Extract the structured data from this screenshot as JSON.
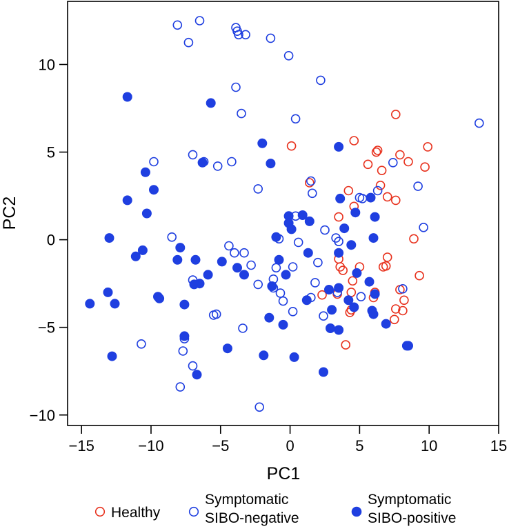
{
  "chart_data": {
    "type": "scatter",
    "title": "",
    "xlabel": "PC1",
    "ylabel": "PC2",
    "xlim": [
      -16,
      15
    ],
    "ylim": [
      -10.6,
      13.6
    ],
    "xticks": [
      -15,
      -10,
      -5,
      0,
      5,
      10,
      15
    ],
    "yticks": [
      -10,
      -5,
      0,
      5,
      10
    ],
    "grid": false,
    "legend_position": "bottom",
    "series": [
      {
        "name": "Healthy",
        "marker": "open-circle",
        "color": "#e8321e",
        "points": [
          [
            0.1,
            5.35
          ],
          [
            4.6,
            5.65
          ],
          [
            6.2,
            5.0
          ],
          [
            6.3,
            5.1
          ],
          [
            7.6,
            7.15
          ],
          [
            7.9,
            4.85
          ],
          [
            9.9,
            5.3
          ],
          [
            5.6,
            4.3
          ],
          [
            6.6,
            3.95
          ],
          [
            8.5,
            4.45
          ],
          [
            9.7,
            4.15
          ],
          [
            1.4,
            3.25
          ],
          [
            4.2,
            2.8
          ],
          [
            6.5,
            3.1
          ],
          [
            7.0,
            2.45
          ],
          [
            7.6,
            2.25
          ],
          [
            3.5,
            1.3
          ],
          [
            4.6,
            1.9
          ],
          [
            8.9,
            0.05
          ],
          [
            3.5,
            -1.1
          ],
          [
            3.6,
            -1.55
          ],
          [
            3.8,
            -1.75
          ],
          [
            5.0,
            -1.55
          ],
          [
            7.0,
            -1.0
          ],
          [
            6.9,
            -1.5
          ],
          [
            6.7,
            -1.55
          ],
          [
            4.5,
            -2.35
          ],
          [
            9.3,
            -2.05
          ],
          [
            2.3,
            -3.15
          ],
          [
            3.4,
            -3.1
          ],
          [
            4.4,
            -3.0
          ],
          [
            6.1,
            -3.0
          ],
          [
            6.0,
            -3.3
          ],
          [
            7.9,
            -2.85
          ],
          [
            8.2,
            -3.45
          ],
          [
            7.6,
            -3.95
          ],
          [
            8.1,
            -4.05
          ],
          [
            4.4,
            -4.0
          ],
          [
            4.3,
            -4.15
          ],
          [
            7.5,
            -4.55
          ],
          [
            4.0,
            -6.0
          ]
        ]
      },
      {
        "name": "Symptomatic SIBO-negative",
        "marker": "open-circle",
        "color": "#1f3fe0",
        "points": [
          [
            -8.1,
            12.25
          ],
          [
            -6.5,
            12.5
          ],
          [
            -3.9,
            12.1
          ],
          [
            -3.8,
            11.9
          ],
          [
            -3.7,
            11.7
          ],
          [
            -3.2,
            11.7
          ],
          [
            -1.4,
            11.5
          ],
          [
            -7.3,
            11.25
          ],
          [
            -0.1,
            10.5
          ],
          [
            2.2,
            9.1
          ],
          [
            -3.9,
            8.7
          ],
          [
            -3.5,
            7.2
          ],
          [
            0.4,
            6.9
          ],
          [
            13.6,
            6.65
          ],
          [
            -9.8,
            4.45
          ],
          [
            -7.0,
            4.85
          ],
          [
            -6.2,
            4.45
          ],
          [
            -4.2,
            4.45
          ],
          [
            -5.2,
            4.2
          ],
          [
            -2.3,
            2.9
          ],
          [
            1.5,
            3.35
          ],
          [
            1.6,
            2.65
          ],
          [
            7.4,
            4.4
          ],
          [
            6.3,
            2.8
          ],
          [
            9.2,
            3.05
          ],
          [
            0.4,
            1.35
          ],
          [
            5.0,
            2.4
          ],
          [
            5.2,
            2.35
          ],
          [
            9.6,
            0.7
          ],
          [
            -8.5,
            0.15
          ],
          [
            -4.4,
            -0.35
          ],
          [
            -4.0,
            -0.75
          ],
          [
            -3.3,
            -0.75
          ],
          [
            -0.8,
            0.05
          ],
          [
            0.6,
            -0.15
          ],
          [
            2.5,
            0.55
          ],
          [
            3.3,
            0.1
          ],
          [
            3.5,
            -0.1
          ],
          [
            -1.2,
            -2.25
          ],
          [
            -2.8,
            -1.45
          ],
          [
            -2.3,
            -2.55
          ],
          [
            -1.2,
            -2.75
          ],
          [
            -1.0,
            -1.6
          ],
          [
            0.2,
            -1.55
          ],
          [
            1.8,
            -2.45
          ],
          [
            2.0,
            -1.3
          ],
          [
            -7.0,
            -2.3
          ],
          [
            -0.7,
            -3.05
          ],
          [
            -0.5,
            -3.5
          ],
          [
            1.5,
            -3.3
          ],
          [
            3.4,
            -3.0
          ],
          [
            5.1,
            -3.25
          ],
          [
            8.1,
            -2.8
          ],
          [
            -5.3,
            -4.25
          ],
          [
            -5.5,
            -4.3
          ],
          [
            0.2,
            -4.1
          ],
          [
            -3.4,
            -5.05
          ],
          [
            2.4,
            -4.35
          ],
          [
            -10.7,
            -5.95
          ],
          [
            -7.6,
            -5.65
          ],
          [
            -7.7,
            -6.35
          ],
          [
            -7.0,
            -7.2
          ],
          [
            -7.9,
            -8.4
          ],
          [
            -2.2,
            -9.55
          ]
        ]
      },
      {
        "name": "Symptomatic SIBO-positive",
        "marker": "filled-circle",
        "color": "#1f3fe0",
        "points": [
          [
            -11.7,
            8.15
          ],
          [
            -5.7,
            7.8
          ],
          [
            -2.0,
            5.5
          ],
          [
            3.5,
            5.3
          ],
          [
            -6.3,
            4.4
          ],
          [
            -1.4,
            4.35
          ],
          [
            -10.4,
            3.85
          ],
          [
            -9.8,
            2.85
          ],
          [
            -11.7,
            2.25
          ],
          [
            -10.3,
            1.5
          ],
          [
            3.6,
            2.35
          ],
          [
            5.8,
            2.4
          ],
          [
            -13.0,
            0.1
          ],
          [
            -10.6,
            -0.6
          ],
          [
            -11.1,
            -0.95
          ],
          [
            -7.9,
            -0.45
          ],
          [
            -8.1,
            -1.15
          ],
          [
            -6.8,
            -1.15
          ],
          [
            -4.9,
            -1.25
          ],
          [
            -3.8,
            -1.6
          ],
          [
            -3.3,
            -2.0
          ],
          [
            -1.0,
            0.15
          ],
          [
            -0.1,
            1.35
          ],
          [
            0.9,
            1.4
          ],
          [
            -0.1,
            0.95
          ],
          [
            0.1,
            0.6
          ],
          [
            1.4,
            1.05
          ],
          [
            3.9,
            0.65
          ],
          [
            4.7,
            1.55
          ],
          [
            6.1,
            1.3
          ],
          [
            4.4,
            -0.3
          ],
          [
            6.0,
            0.1
          ],
          [
            1.3,
            -0.75
          ],
          [
            3.5,
            -0.75
          ],
          [
            -1.3,
            -2.65
          ],
          [
            -6.5,
            -2.5
          ],
          [
            -6.9,
            -2.55
          ],
          [
            -5.9,
            -2.0
          ],
          [
            -0.8,
            -1.15
          ],
          [
            -0.3,
            -2.0
          ],
          [
            4.8,
            -1.9
          ],
          [
            5.7,
            -2.4
          ],
          [
            -9.5,
            -3.25
          ],
          [
            -9.4,
            -3.35
          ],
          [
            -7.6,
            -3.7
          ],
          [
            -14.4,
            -3.65
          ],
          [
            -13.1,
            -3.0
          ],
          [
            -12.6,
            -3.65
          ],
          [
            1.2,
            -3.45
          ],
          [
            2.8,
            -2.85
          ],
          [
            3.5,
            -2.75
          ],
          [
            4.2,
            -3.45
          ],
          [
            4.6,
            -3.85
          ],
          [
            6.1,
            -3.1
          ],
          [
            5.9,
            -4.05
          ],
          [
            6.0,
            -4.25
          ],
          [
            6.9,
            -4.8
          ],
          [
            3.0,
            -4.0
          ],
          [
            2.9,
            -5.05
          ],
          [
            3.5,
            -5.15
          ],
          [
            -1.5,
            -4.45
          ],
          [
            -0.5,
            -4.85
          ],
          [
            -4.5,
            -6.2
          ],
          [
            -1.9,
            -6.6
          ],
          [
            0.3,
            -6.7
          ],
          [
            -12.8,
            -6.65
          ],
          [
            -7.6,
            -5.5
          ],
          [
            -6.7,
            -7.7
          ],
          [
            2.4,
            -7.55
          ],
          [
            8.4,
            -6.05
          ],
          [
            8.5,
            -6.05
          ]
        ]
      }
    ],
    "legend": [
      {
        "label_lines": [
          "Healthy"
        ],
        "series": 0
      },
      {
        "label_lines": [
          "Symptomatic",
          "SIBO-negative"
        ],
        "series": 1
      },
      {
        "label_lines": [
          "Symptomatic",
          "SIBO-positive"
        ],
        "series": 2
      }
    ]
  }
}
